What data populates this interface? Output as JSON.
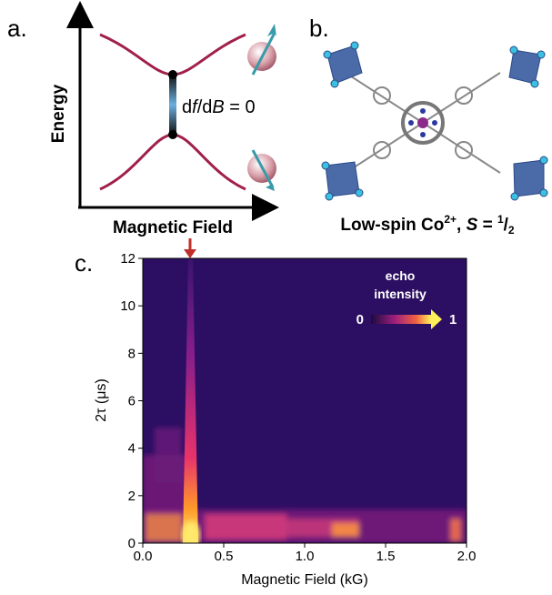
{
  "panel_a": {
    "label": "a.",
    "y_axis_label": "Energy",
    "x_axis_label": "Magnetic Field",
    "annotation_parts": [
      "d",
      "f",
      "/d",
      "B",
      " = 0"
    ]
  },
  "panel_b": {
    "label": "b.",
    "caption_parts": [
      "Low-spin Co",
      "2+",
      ", ",
      "S",
      " = ",
      "1",
      "/",
      "2"
    ]
  },
  "chart_data": {
    "type": "heatmap",
    "panel_label": "c.",
    "x_label": "Magnetic Field (kG)",
    "y_label": "2τ (μs)",
    "xlim": [
      0,
      2
    ],
    "xticks": [
      {
        "value": 0,
        "label": "0.0"
      },
      {
        "value": 0.5,
        "label": "0.5"
      },
      {
        "value": 1,
        "label": "1.0"
      },
      {
        "value": 1.5,
        "label": "1.5"
      },
      {
        "value": 2,
        "label": "2.0"
      }
    ],
    "ylim": [
      0,
      12
    ],
    "yticks": [
      0,
      2,
      4,
      6,
      8,
      10,
      12
    ],
    "colorbar": {
      "title_lines": [
        "echo",
        "intensity"
      ],
      "ticks": [
        0,
        1
      ]
    }
  }
}
